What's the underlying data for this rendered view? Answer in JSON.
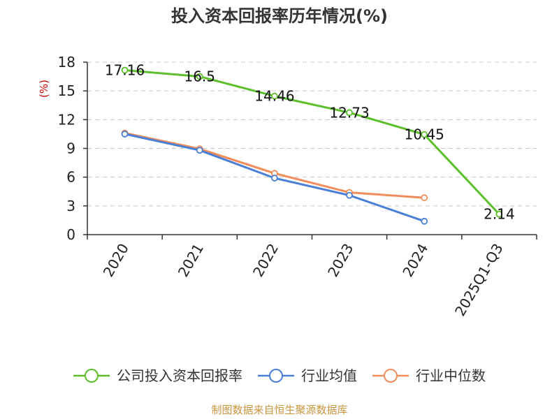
{
  "source_note": "制图数据来自恒生聚源数据库",
  "chart_data": {
    "type": "line",
    "title": "投入资本回报率历年情况(%)",
    "xlabel": "",
    "ylabel": "(%)",
    "ylim": [
      0,
      18
    ],
    "yticks": [
      "0",
      "3",
      "6",
      "9",
      "12",
      "15",
      "18"
    ],
    "grid": true,
    "legend_position": "bottom",
    "categories": [
      "2020",
      "2021",
      "2022",
      "2023",
      "2024",
      "2025Q1-Q3"
    ],
    "series": [
      {
        "name": "公司投入资本回报率",
        "color": "#5cbf2a",
        "values": [
          17.16,
          16.5,
          14.46,
          12.73,
          10.45,
          2.14
        ],
        "data_labels": [
          "17.16",
          "16.5",
          "14.46",
          "12.73",
          "10.45",
          "2.14"
        ]
      },
      {
        "name": "行业均值",
        "color": "#4a7fd6",
        "values": [
          10.5,
          8.8,
          5.9,
          4.1,
          1.4,
          null
        ]
      },
      {
        "name": "行业中位数",
        "color": "#f28c5a",
        "values": [
          10.6,
          8.95,
          6.4,
          4.4,
          3.85,
          null
        ]
      }
    ]
  }
}
